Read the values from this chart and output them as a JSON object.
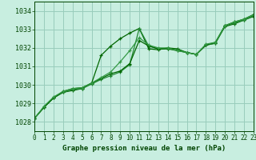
{
  "title": "Graphe pression niveau de la mer (hPa)",
  "bg_color": "#c8eee0",
  "grid_color": "#99ccbb",
  "text_color": "#004400",
  "line_colors": [
    "#006600",
    "#228833",
    "#006600",
    "#339944"
  ],
  "xlim": [
    0,
    23
  ],
  "ylim": [
    1027.5,
    1034.5
  ],
  "yticks": [
    1028,
    1029,
    1030,
    1031,
    1032,
    1033,
    1034
  ],
  "xticks": [
    0,
    1,
    2,
    3,
    4,
    5,
    6,
    7,
    8,
    9,
    10,
    11,
    12,
    13,
    14,
    15,
    16,
    17,
    18,
    19,
    20,
    21,
    22,
    23
  ],
  "series": [
    [
      1028.2,
      1028.8,
      1029.3,
      1029.6,
      1029.7,
      1029.8,
      1030.1,
      1031.6,
      1032.1,
      1032.5,
      1032.8,
      1033.05,
      1031.95,
      1031.9,
      1032.0,
      1031.95,
      1031.75,
      1031.65,
      1032.15,
      1032.25,
      1033.15,
      1033.3,
      1033.5,
      1033.7
    ],
    [
      1028.2,
      1028.8,
      1029.3,
      1029.6,
      1029.75,
      1029.8,
      1030.05,
      1030.3,
      1030.5,
      1030.7,
      1031.1,
      1033.05,
      1032.1,
      1031.95,
      1031.95,
      1031.9,
      1031.75,
      1031.65,
      1032.15,
      1032.25,
      1033.2,
      1033.35,
      1033.5,
      1033.75
    ],
    [
      1028.2,
      1028.8,
      1029.3,
      1029.65,
      1029.8,
      1029.85,
      1030.1,
      1030.35,
      1030.6,
      1030.75,
      1031.15,
      1032.4,
      1032.1,
      1031.95,
      1031.95,
      1031.85,
      1031.75,
      1031.65,
      1032.15,
      1032.3,
      1033.2,
      1033.4,
      1033.55,
      1033.8
    ],
    [
      1028.2,
      1028.85,
      1029.35,
      1029.65,
      1029.8,
      1029.85,
      1030.1,
      1030.4,
      1030.7,
      1031.25,
      1031.85,
      1032.55,
      1032.15,
      1032.0,
      1032.0,
      1031.85,
      1031.75,
      1031.65,
      1032.2,
      1032.3,
      1033.2,
      1033.4,
      1033.55,
      1033.78
    ]
  ]
}
